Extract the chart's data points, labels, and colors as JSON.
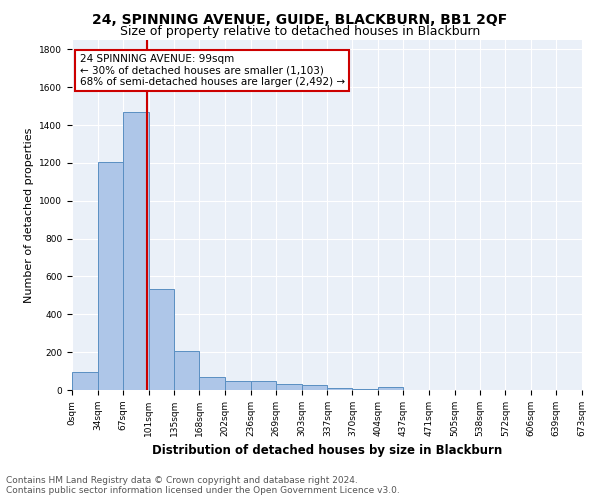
{
  "title": "24, SPINNING AVENUE, GUIDE, BLACKBURN, BB1 2QF",
  "subtitle": "Size of property relative to detached houses in Blackburn",
  "xlabel": "Distribution of detached houses by size in Blackburn",
  "ylabel": "Number of detached properties",
  "footer_line1": "Contains HM Land Registry data © Crown copyright and database right 2024.",
  "footer_line2": "Contains public sector information licensed under the Open Government Licence v3.0.",
  "annotation_line1": "24 SPINNING AVENUE: 99sqm",
  "annotation_line2": "← 30% of detached houses are smaller (1,103)",
  "annotation_line3": "68% of semi-detached houses are larger (2,492) →",
  "bar_edges": [
    0,
    34,
    67,
    101,
    135,
    168,
    202,
    236,
    269,
    303,
    337,
    370,
    404,
    437,
    471,
    505,
    538,
    572,
    606,
    639,
    673
  ],
  "bar_heights": [
    95,
    1205,
    1470,
    535,
    205,
    70,
    48,
    48,
    33,
    25,
    12,
    7,
    15,
    0,
    0,
    0,
    0,
    0,
    0,
    0
  ],
  "bar_color": "#aec6e8",
  "bar_edge_color": "#5a8fc2",
  "property_line_x": 99,
  "property_line_color": "#cc0000",
  "ylim": [
    0,
    1850
  ],
  "yticks": [
    0,
    200,
    400,
    600,
    800,
    1000,
    1200,
    1400,
    1600,
    1800
  ],
  "background_color": "#eaf0f8",
  "grid_color": "#ffffff",
  "annotation_box_color": "#ffffff",
  "annotation_box_edge_color": "#cc0000",
  "title_fontsize": 10,
  "subtitle_fontsize": 9,
  "xlabel_fontsize": 8.5,
  "ylabel_fontsize": 8,
  "footer_fontsize": 6.5,
  "annotation_fontsize": 7.5,
  "tick_fontsize": 6.5
}
